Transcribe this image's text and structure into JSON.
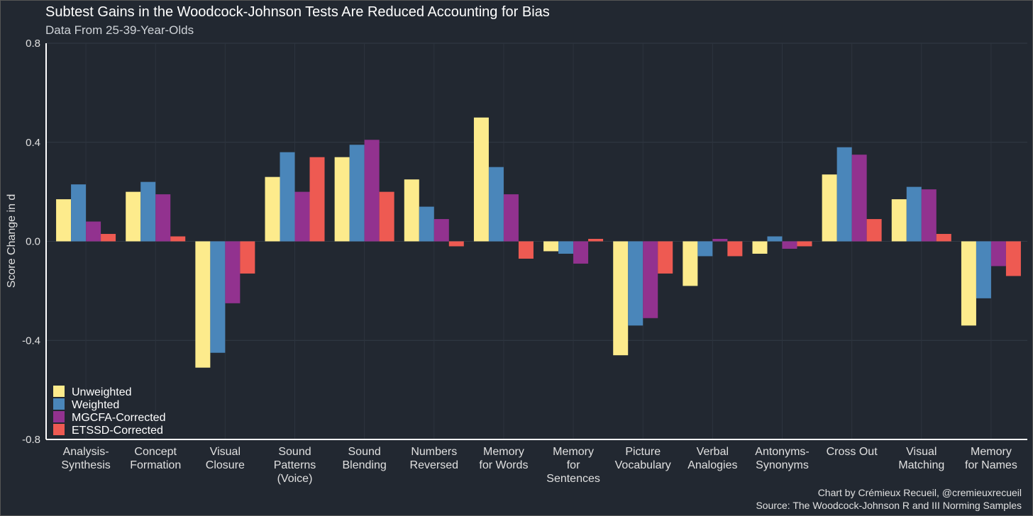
{
  "chart_data": {
    "type": "bar",
    "title": "Subtest Gains in the Woodcock-Johnson Tests Are Reduced Accounting for Bias",
    "subtitle": "Data From 25-39-Year-Olds",
    "xlabel": "",
    "ylabel": "Score Change in d",
    "ylim": [
      -0.8,
      0.8
    ],
    "yticks": [
      -0.8,
      -0.4,
      0.0,
      0.4,
      0.8
    ],
    "ytick_labels": [
      "-0.8",
      "-0.4",
      "0.0",
      "0.4",
      "0.8"
    ],
    "grid": true,
    "legend_position": "bottom-left",
    "categories": [
      [
        "Analysis-",
        "Synthesis"
      ],
      [
        "Concept",
        "Formation"
      ],
      [
        "Visual",
        "Closure"
      ],
      [
        "Sound",
        "Patterns",
        "(Voice)"
      ],
      [
        "Sound",
        "Blending"
      ],
      [
        "Numbers",
        "Reversed"
      ],
      [
        "Memory",
        "for Words"
      ],
      [
        "Memory",
        "for",
        "Sentences"
      ],
      [
        "Picture",
        "Vocabulary"
      ],
      [
        "Verbal",
        "Analogies"
      ],
      [
        "Antonyms-",
        "Synonyms"
      ],
      [
        "Cross Out"
      ],
      [
        "Visual",
        "Matching"
      ],
      [
        "Memory",
        "for Names"
      ]
    ],
    "series": [
      {
        "name": "Unweighted",
        "color": "#FDEB8C",
        "values": [
          0.17,
          0.2,
          -0.51,
          0.26,
          0.34,
          0.25,
          0.5,
          -0.04,
          -0.46,
          -0.18,
          -0.05,
          0.27,
          0.17,
          -0.34
        ]
      },
      {
        "name": "Weighted",
        "color": "#4A86BA",
        "values": [
          0.23,
          0.24,
          -0.45,
          0.36,
          0.39,
          0.14,
          0.3,
          -0.05,
          -0.34,
          -0.06,
          0.02,
          0.38,
          0.22,
          -0.23
        ]
      },
      {
        "name": "MGCFA-Corrected",
        "color": "#92328F",
        "values": [
          0.08,
          0.19,
          -0.25,
          0.2,
          0.41,
          0.09,
          0.19,
          -0.09,
          -0.31,
          0.01,
          -0.03,
          0.35,
          0.21,
          -0.1
        ]
      },
      {
        "name": "ETSSD-Corrected",
        "color": "#EE5A52",
        "values": [
          0.03,
          0.02,
          -0.13,
          0.34,
          0.2,
          -0.02,
          -0.07,
          0.01,
          -0.13,
          -0.06,
          -0.02,
          0.09,
          0.03,
          -0.14
        ]
      }
    ],
    "credits": [
      "Chart by Crémieux Recueil, @cremieuxrecueil",
      "Source: The Woodcock-Johnson R and III Norming Samples"
    ]
  }
}
